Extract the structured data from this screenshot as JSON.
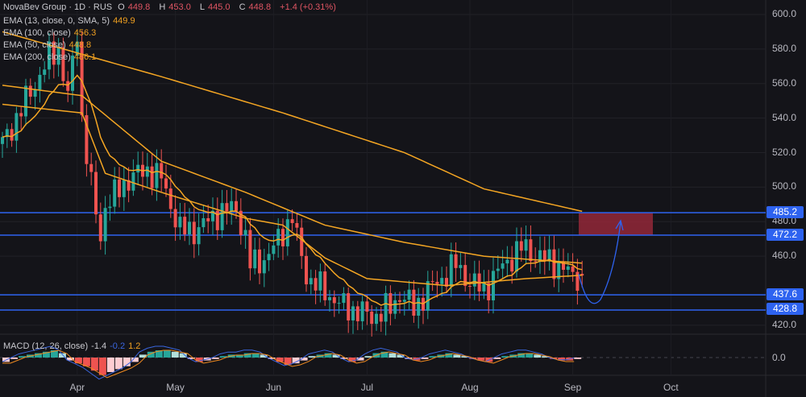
{
  "header": {
    "symbol": "NovaBev Group · 1D · RUS",
    "o_label": "O",
    "o": "449.8",
    "h_label": "H",
    "h": "453.0",
    "l_label": "L",
    "l": "445.0",
    "c_label": "C",
    "c": "448.8",
    "change": "+1.4 (+0.31%)"
  },
  "indicators": [
    {
      "label": "EMA (13, close, 0, SMA, 5)",
      "value": "449.9"
    },
    {
      "label": "EMA (100, close)",
      "value": "456.3"
    },
    {
      "label": "EMA (50, close)",
      "value": "448.8"
    },
    {
      "label": "EMA (200, close)",
      "value": "486.1"
    }
  ],
  "macd": {
    "label": "MACD (12, 26, close)",
    "hist": "-1.4",
    "macd": "-0.2",
    "signal": "1.2"
  },
  "levels": [
    "485.2",
    "472.2",
    "437.6",
    "428.8"
  ],
  "colors": {
    "up": "#26a69a",
    "down": "#ef5350",
    "ema": "#f5a623",
    "level": "#2e63f0",
    "zone": "#a32a3c"
  },
  "chart_data": {
    "type": "candlestick",
    "title": "NovaBev Group · 1D · RUS",
    "y_ticks": [
      "600.0",
      "580.0",
      "560.0",
      "540.0",
      "520.0",
      "500.0",
      "480.0",
      "460.0",
      "420.0"
    ],
    "y_tick_values": [
      600,
      580,
      560,
      540,
      520,
      500,
      480,
      460,
      420
    ],
    "ylim": [
      420,
      600
    ],
    "x_ticks": [
      "Apr",
      "May",
      "Jun",
      "Jul",
      "Aug",
      "Sep",
      "Oct"
    ],
    "x_tick_days": [
      16,
      37,
      58,
      78,
      100,
      122,
      143
    ],
    "close_path": [
      [
        0,
        525
      ],
      [
        4,
        545
      ],
      [
        7,
        560
      ],
      [
        10,
        575
      ],
      [
        12,
        580
      ],
      [
        14,
        552
      ],
      [
        16,
        590
      ],
      [
        17,
        540
      ],
      [
        19,
        500
      ],
      [
        21,
        470
      ],
      [
        22,
        490
      ],
      [
        24,
        495
      ],
      [
        27,
        505
      ],
      [
        31,
        510
      ],
      [
        34,
        505
      ],
      [
        36,
        490
      ],
      [
        38,
        475
      ],
      [
        41,
        475
      ],
      [
        43,
        478
      ],
      [
        46,
        485
      ],
      [
        50,
        488
      ],
      [
        52,
        470
      ],
      [
        53,
        455
      ],
      [
        57,
        460
      ],
      [
        60,
        475
      ],
      [
        62,
        482
      ],
      [
        63,
        470
      ],
      [
        65,
        450
      ],
      [
        66,
        445
      ],
      [
        69,
        440
      ],
      [
        72,
        432
      ],
      [
        76,
        428
      ],
      [
        79,
        425
      ],
      [
        83,
        430
      ],
      [
        85,
        438
      ],
      [
        88,
        430
      ],
      [
        91,
        440
      ],
      [
        95,
        450
      ],
      [
        97,
        455
      ],
      [
        100,
        445
      ],
      [
        103,
        440
      ],
      [
        105,
        448
      ],
      [
        109,
        460
      ],
      [
        111,
        465
      ],
      [
        116,
        458
      ],
      [
        119,
        455
      ],
      [
        122,
        448
      ],
      [
        124,
        449
      ]
    ],
    "ema200": [
      [
        0,
        590
      ],
      [
        34,
        564
      ],
      [
        60,
        543
      ],
      [
        86,
        520
      ],
      [
        103,
        499
      ],
      [
        124,
        486
      ]
    ],
    "ema100": [
      [
        0,
        559
      ],
      [
        17,
        553
      ],
      [
        34,
        515
      ],
      [
        52,
        497
      ],
      [
        69,
        478
      ],
      [
        86,
        468
      ],
      [
        103,
        460
      ],
      [
        124,
        456
      ]
    ],
    "ema50": [
      [
        0,
        548
      ],
      [
        10,
        545
      ],
      [
        17,
        543
      ],
      [
        22,
        508
      ],
      [
        34,
        497
      ],
      [
        52,
        482
      ],
      [
        60,
        478
      ],
      [
        69,
        459
      ],
      [
        78,
        447
      ],
      [
        95,
        443
      ],
      [
        112,
        447
      ],
      [
        124,
        449
      ]
    ],
    "macd_hist": [
      -3,
      -1,
      1,
      2,
      3,
      4,
      5,
      3,
      -2,
      -4,
      -6,
      -9,
      -12,
      -10,
      -8,
      -6,
      -3,
      2,
      4,
      5,
      5,
      4,
      3,
      -1,
      -3,
      -2,
      -1,
      1,
      2,
      2,
      3,
      3,
      2,
      -1,
      -3,
      -5,
      -4,
      -2,
      1,
      2,
      3,
      2,
      -1,
      -3,
      -2,
      1,
      3,
      4,
      3,
      2,
      -1,
      -2,
      -1,
      1,
      2,
      3,
      2,
      1,
      -1,
      -2,
      -3,
      -1,
      1,
      2,
      3,
      3,
      2,
      1,
      -1,
      -2,
      -2,
      -1
    ]
  },
  "forecast": {
    "target_zone": [
      "472.2",
      "485.2"
    ]
  }
}
